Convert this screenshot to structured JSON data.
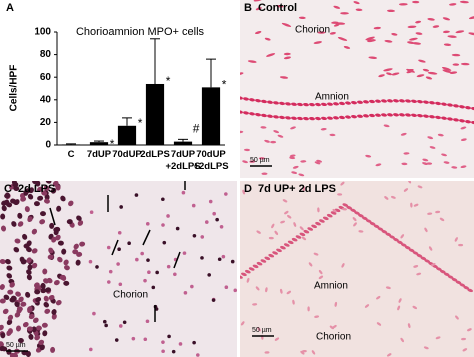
{
  "chart_data": {
    "type": "bar",
    "panel": "A",
    "title": "Chorioamnion MPO+ cells",
    "y_label": "Cells/HPF",
    "categories": [
      "C",
      "7dUP",
      "70dUP",
      "2dLPS",
      "7dUP\n+2dLPS",
      "70dUP\n+2dLPS"
    ],
    "values": [
      0.5,
      2.5,
      17,
      54,
      3,
      51
    ],
    "errors": [
      0.5,
      1,
      7,
      40,
      2,
      25
    ],
    "markers": [
      null,
      "*",
      "*",
      "*",
      "#",
      "*"
    ],
    "color": "#000000",
    "ylim": [
      0,
      100
    ],
    "yticks": [
      0,
      20,
      40,
      60,
      80,
      100
    ]
  },
  "panels": [
    {
      "letter": "B",
      "title": "Control",
      "labels": [
        "Chorion",
        "Amnion"
      ],
      "scale_bar": "50 µm"
    },
    {
      "letter": "C",
      "title": "2d LPS",
      "labels": [
        "Chorion"
      ],
      "scale_bar": "50 µm"
    },
    {
      "letter": "D",
      "title": "7d UP+ 2d LPS",
      "labels": [
        "Amnion",
        "Chorion"
      ],
      "scale_bar": "50 µm"
    }
  ]
}
